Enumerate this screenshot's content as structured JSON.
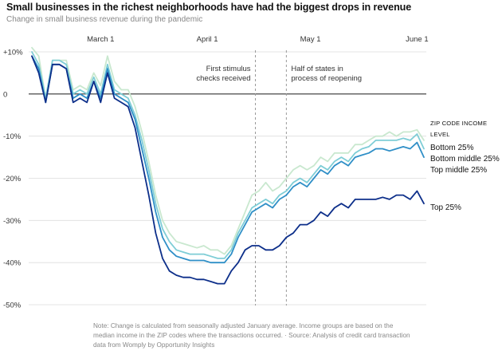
{
  "header": {
    "title": "Small businesses in the richest neighborhoods have had the biggest drops in revenue",
    "subtitle": "Change in small business revenue during the pandemic"
  },
  "footer": {
    "note": "Note: Change is calculated from seasonally adjusted January average. Income groups are based on the median income in the ZIP codes where the transactions occurred.  ·  Source: Analysis of credit card transaction data from Womply by Opportunity Insights"
  },
  "legend": {
    "heading": "ZIP CODE INCOME LEVEL",
    "entries": [
      "Bottom 25%",
      "Bottom middle 25%",
      "Top middle 25%",
      "Top 25%"
    ]
  },
  "colors": {
    "bottom": "#c9e8cf",
    "bottom_middle": "#7ecdd6",
    "top_middle": "#2f8fc7",
    "top": "#0d2f8a",
    "axis": "#333333",
    "grid": "#dddddd",
    "vline": "#999999"
  },
  "chart_data": {
    "type": "line",
    "title": "Small businesses in the richest neighborhoods have had the biggest drops in revenue",
    "subtitle": "Change in small business revenue during the pandemic",
    "x_ticks": [
      "March 1",
      "April 1",
      "May 1",
      "June 1"
    ],
    "x_range": [
      "2020-02-10",
      "2020-06-03"
    ],
    "y_ticks": [
      "+10%",
      "0",
      "-10%",
      "-20%",
      "-30%",
      "-40%",
      "-50%"
    ],
    "y_tick_values": [
      10,
      0,
      -10,
      -20,
      -30,
      -40,
      -50
    ],
    "ylim": [
      -50,
      10
    ],
    "grid": true,
    "legend_placement": "right",
    "annotations": [
      {
        "date": "2020-04-15",
        "text": [
          "First stimulus",
          "checks received"
        ]
      },
      {
        "date": "2020-04-24",
        "text": [
          "Half of states in",
          "process of reopening"
        ]
      }
    ],
    "dates": [
      "2020-02-10",
      "2020-02-12",
      "2020-02-14",
      "2020-02-16",
      "2020-02-18",
      "2020-02-20",
      "2020-02-22",
      "2020-02-24",
      "2020-02-26",
      "2020-02-28",
      "2020-03-01",
      "2020-03-03",
      "2020-03-05",
      "2020-03-07",
      "2020-03-09",
      "2020-03-11",
      "2020-03-13",
      "2020-03-15",
      "2020-03-17",
      "2020-03-19",
      "2020-03-21",
      "2020-03-23",
      "2020-03-25",
      "2020-03-27",
      "2020-03-29",
      "2020-03-31",
      "2020-04-02",
      "2020-04-04",
      "2020-04-06",
      "2020-04-08",
      "2020-04-10",
      "2020-04-12",
      "2020-04-14",
      "2020-04-16",
      "2020-04-18",
      "2020-04-20",
      "2020-04-22",
      "2020-04-24",
      "2020-04-26",
      "2020-04-28",
      "2020-04-30",
      "2020-05-02",
      "2020-05-04",
      "2020-05-06",
      "2020-05-08",
      "2020-05-10",
      "2020-05-12",
      "2020-05-14",
      "2020-05-16",
      "2020-05-18",
      "2020-05-20",
      "2020-05-22",
      "2020-05-24",
      "2020-05-26",
      "2020-05-28",
      "2020-05-30",
      "2020-06-01",
      "2020-06-03"
    ],
    "series": [
      {
        "name": "Bottom 25%",
        "color": "#c9e8cf",
        "values": [
          11,
          9,
          -1,
          8,
          8,
          8,
          1,
          2,
          1,
          5,
          2,
          9,
          3,
          1,
          1,
          -3,
          -9,
          -16,
          -24,
          -30,
          -33,
          -35,
          -35.5,
          -36,
          -36.5,
          -36,
          -37,
          -37,
          -38,
          -36,
          -32,
          -28,
          -24,
          -23,
          -21,
          -23,
          -22,
          -20,
          -18,
          -17,
          -18,
          -17,
          -15,
          -16,
          -14,
          -14,
          -14,
          -12,
          -12,
          -11,
          -10,
          -10,
          -9,
          -10,
          -9,
          -9,
          -8.5,
          -11
        ]
      },
      {
        "name": "Bottom middle 25%",
        "color": "#7ecdd6",
        "values": [
          10,
          7,
          -1,
          8,
          8,
          7,
          0,
          1,
          0,
          4,
          0,
          7,
          1,
          0,
          -1,
          -5,
          -11,
          -18,
          -26,
          -32,
          -35,
          -37,
          -37.5,
          -38,
          -38,
          -38,
          -38.5,
          -39,
          -39,
          -37,
          -33,
          -30,
          -27,
          -26,
          -25,
          -26,
          -24,
          -23,
          -21,
          -20,
          -21,
          -19,
          -17,
          -18,
          -16,
          -15,
          -16,
          -14,
          -13,
          -12.5,
          -11,
          -11,
          -11,
          -11,
          -10.5,
          -11,
          -9.5,
          -13
        ]
      },
      {
        "name": "Top middle 25%",
        "color": "#2f8fc7",
        "values": [
          9,
          6,
          -2,
          7,
          7,
          6,
          -1,
          0,
          -1,
          3,
          -1,
          6,
          0,
          -1,
          -2,
          -6,
          -13,
          -20,
          -28,
          -34,
          -37,
          -38.5,
          -39,
          -39.5,
          -39.5,
          -39.5,
          -40,
          -40,
          -40,
          -38,
          -34,
          -31,
          -28,
          -27,
          -26,
          -27,
          -25,
          -24,
          -22,
          -21,
          -22,
          -20,
          -18,
          -19,
          -17,
          -16,
          -17,
          -15,
          -14.5,
          -14,
          -13,
          -13,
          -13.5,
          -13,
          -12.5,
          -13,
          -11.5,
          -15
        ]
      },
      {
        "name": "Top 25%",
        "color": "#0d2f8a",
        "values": [
          9,
          5,
          -2,
          7,
          7,
          6,
          -2,
          -1,
          -2,
          3,
          -2,
          5,
          -1,
          -2,
          -3,
          -8,
          -16,
          -24,
          -33,
          -39,
          -42,
          -43,
          -43.5,
          -43.5,
          -44,
          -44,
          -44.5,
          -45,
          -45,
          -42,
          -40,
          -37,
          -36,
          -36,
          -37,
          -37,
          -36,
          -34,
          -33,
          -31,
          -31,
          -30,
          -28,
          -29,
          -27,
          -26,
          -27,
          -25,
          -25,
          -25,
          -25,
          -24.5,
          -25,
          -24,
          -24,
          -25,
          -23,
          -26
        ]
      }
    ]
  }
}
